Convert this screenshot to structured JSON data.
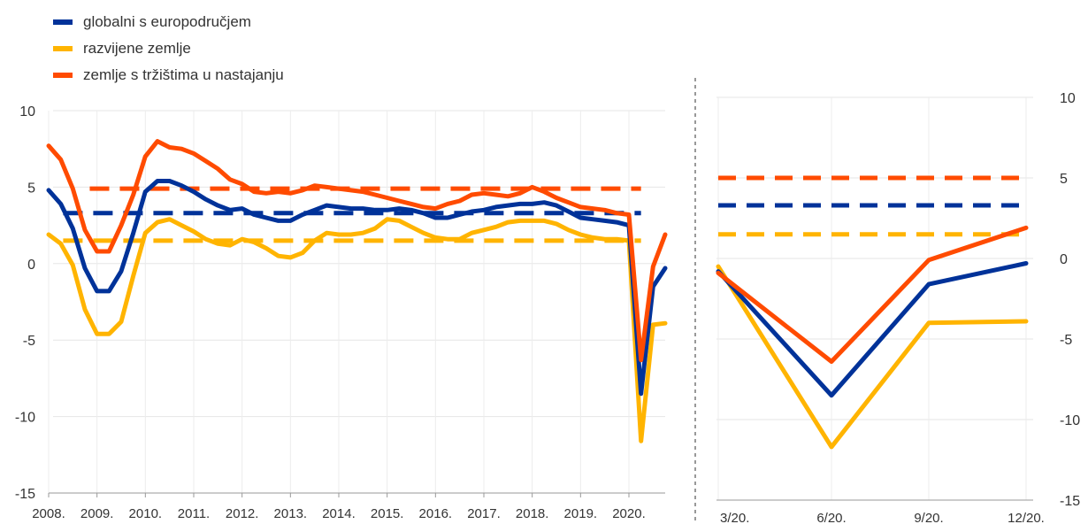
{
  "legend": [
    {
      "label": "globalni s europodručjem",
      "color": "#003299"
    },
    {
      "label": "razvijene zemlje",
      "color": "#FFB400"
    },
    {
      "label": "zemlje s tržištima u nastajanju",
      "color": "#FF4B00"
    }
  ],
  "chart_data": [
    {
      "type": "line",
      "ylim": [
        -15,
        10
      ],
      "yticks": [
        10,
        5,
        0,
        -5,
        -10,
        -15
      ],
      "xlim": [
        2008,
        2020.8
      ],
      "xticks": [
        "2008.",
        "2009.",
        "2010.",
        "2011.",
        "2012.",
        "2013.",
        "2014.",
        "2015.",
        "2016.",
        "2017.",
        "2018.",
        "2019.",
        "2020."
      ],
      "grid": true,
      "series": [
        {
          "name": "globalni s europodručjem",
          "color": "#003299",
          "x": [
            2008.0,
            2008.25,
            2008.5,
            2008.75,
            2009.0,
            2009.25,
            2009.5,
            2009.75,
            2010.0,
            2010.25,
            2010.5,
            2010.75,
            2011.0,
            2011.25,
            2011.5,
            2011.75,
            2012.0,
            2012.25,
            2012.5,
            2012.75,
            2013.0,
            2013.25,
            2013.5,
            2013.75,
            2014.0,
            2014.25,
            2014.5,
            2014.75,
            2015.0,
            2015.25,
            2015.5,
            2015.75,
            2016.0,
            2016.25,
            2016.5,
            2016.75,
            2017.0,
            2017.25,
            2017.5,
            2017.75,
            2018.0,
            2018.25,
            2018.5,
            2018.75,
            2019.0,
            2019.25,
            2019.5,
            2019.75,
            2020.0,
            2020.25,
            2020.5,
            2020.75
          ],
          "y": [
            4.8,
            3.9,
            2.3,
            -0.3,
            -1.8,
            -1.8,
            -0.5,
            2.0,
            4.7,
            5.4,
            5.4,
            5.1,
            4.7,
            4.2,
            3.8,
            3.5,
            3.6,
            3.2,
            3.0,
            2.8,
            2.8,
            3.2,
            3.5,
            3.8,
            3.7,
            3.6,
            3.6,
            3.5,
            3.5,
            3.6,
            3.5,
            3.3,
            3.0,
            3.0,
            3.2,
            3.4,
            3.5,
            3.7,
            3.8,
            3.9,
            3.9,
            4.0,
            3.8,
            3.4,
            3.0,
            2.9,
            2.8,
            2.7,
            2.5,
            -8.5,
            -1.5,
            -0.3
          ]
        },
        {
          "name": "razvijene zemlje",
          "color": "#FFB400",
          "x": [
            2008.0,
            2008.25,
            2008.5,
            2008.75,
            2009.0,
            2009.25,
            2009.5,
            2009.75,
            2010.0,
            2010.25,
            2010.5,
            2010.75,
            2011.0,
            2011.25,
            2011.5,
            2011.75,
            2012.0,
            2012.25,
            2012.5,
            2012.75,
            2013.0,
            2013.25,
            2013.5,
            2013.75,
            2014.0,
            2014.25,
            2014.5,
            2014.75,
            2015.0,
            2015.25,
            2015.5,
            2015.75,
            2016.0,
            2016.25,
            2016.5,
            2016.75,
            2017.0,
            2017.25,
            2017.5,
            2017.75,
            2018.0,
            2018.25,
            2018.5,
            2018.75,
            2019.0,
            2019.25,
            2019.5,
            2019.75,
            2020.0,
            2020.25,
            2020.5,
            2020.75
          ],
          "y": [
            1.9,
            1.3,
            -0.1,
            -3.0,
            -4.6,
            -4.6,
            -3.8,
            -0.8,
            2.0,
            2.7,
            2.9,
            2.5,
            2.1,
            1.6,
            1.3,
            1.2,
            1.6,
            1.4,
            1.0,
            0.5,
            0.4,
            0.7,
            1.5,
            2.0,
            1.9,
            1.9,
            2.0,
            2.3,
            2.9,
            2.8,
            2.4,
            2.0,
            1.7,
            1.6,
            1.6,
            2.0,
            2.2,
            2.4,
            2.7,
            2.8,
            2.8,
            2.8,
            2.6,
            2.2,
            1.9,
            1.7,
            1.6,
            1.6,
            1.5,
            -11.6,
            -4.0,
            -3.9
          ]
        },
        {
          "name": "zemlje s tržištima u nastajanju",
          "color": "#FF4B00",
          "x": [
            2008.0,
            2008.25,
            2008.5,
            2008.75,
            2009.0,
            2009.25,
            2009.5,
            2009.75,
            2010.0,
            2010.25,
            2010.5,
            2010.75,
            2011.0,
            2011.25,
            2011.5,
            2011.75,
            2012.0,
            2012.25,
            2012.5,
            2012.75,
            2013.0,
            2013.25,
            2013.5,
            2013.75,
            2014.0,
            2014.25,
            2014.5,
            2014.75,
            2015.0,
            2015.25,
            2015.5,
            2015.75,
            2016.0,
            2016.25,
            2016.5,
            2016.75,
            2017.0,
            2017.25,
            2017.5,
            2017.75,
            2018.0,
            2018.25,
            2018.5,
            2018.75,
            2019.0,
            2019.25,
            2019.5,
            2019.75,
            2020.0,
            2020.25,
            2020.5,
            2020.75
          ],
          "y": [
            7.7,
            6.8,
            4.9,
            2.2,
            0.8,
            0.8,
            2.5,
            4.5,
            7.0,
            8.0,
            7.6,
            7.5,
            7.2,
            6.7,
            6.2,
            5.5,
            5.2,
            4.7,
            4.6,
            4.7,
            4.6,
            4.8,
            5.1,
            5.0,
            4.9,
            4.8,
            4.7,
            4.5,
            4.3,
            4.1,
            3.9,
            3.7,
            3.6,
            3.9,
            4.1,
            4.5,
            4.6,
            4.5,
            4.4,
            4.6,
            5.0,
            4.7,
            4.3,
            4.0,
            3.7,
            3.6,
            3.5,
            3.3,
            3.2,
            -6.3,
            -0.2,
            1.9
          ]
        }
      ],
      "reference_lines": [
        {
          "series": "globalni s europodručjem",
          "y": 3.3,
          "style": "dashed",
          "x": [
            2008.3,
            2020.25
          ]
        },
        {
          "series": "razvijene zemlje",
          "y": 1.5,
          "style": "dashed",
          "x": [
            2008.3,
            2020.25
          ]
        },
        {
          "series": "zemlje s tržištima u nastajanju",
          "y": 4.9,
          "style": "dashed",
          "x": [
            2008.85,
            2020.25
          ]
        }
      ]
    },
    {
      "type": "line",
      "ylim": [
        -15,
        10
      ],
      "yticks": [
        10,
        5,
        0,
        -5,
        -10,
        -15
      ],
      "categories": [
        "3/20.",
        "6/20.",
        "9/20.",
        "12/20."
      ],
      "grid": true,
      "series": [
        {
          "name": "globalni s europodručjem",
          "color": "#003299",
          "values": [
            -0.8,
            -8.5,
            -1.6,
            -0.3
          ]
        },
        {
          "name": "razvijene zemlje",
          "color": "#FFB400",
          "values": [
            -0.5,
            -11.7,
            -4.0,
            -3.9
          ]
        },
        {
          "name": "zemlje s tržištima u nastajanju",
          "color": "#FF4B00",
          "values": [
            -0.9,
            -6.4,
            -0.1,
            1.9
          ]
        }
      ],
      "reference_lines": [
        {
          "series": "globalni s europodručjem",
          "y": 3.3,
          "style": "dashed"
        },
        {
          "series": "razvijene zemlje",
          "y": 1.5,
          "style": "dashed"
        },
        {
          "series": "zemlje s tržištima u nastajanju",
          "y": 5.0,
          "style": "dashed"
        }
      ]
    }
  ]
}
